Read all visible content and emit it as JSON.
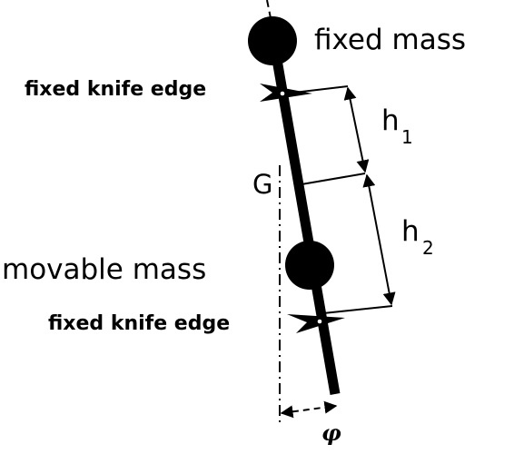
{
  "labels": {
    "fixed_mass": "fixed mass",
    "fixed_knife_edge_top": "fixed knife edge",
    "movable_mass": "movable mass",
    "fixed_knife_edge_bottom": "fixed knife edge",
    "center_of_gravity": "G",
    "h1_base": "h",
    "h1_sub": "1",
    "h2_base": "h",
    "h2_sub": "2",
    "angle": "φ"
  },
  "colors": {
    "ink": "#000000",
    "background": "#ffffff"
  }
}
